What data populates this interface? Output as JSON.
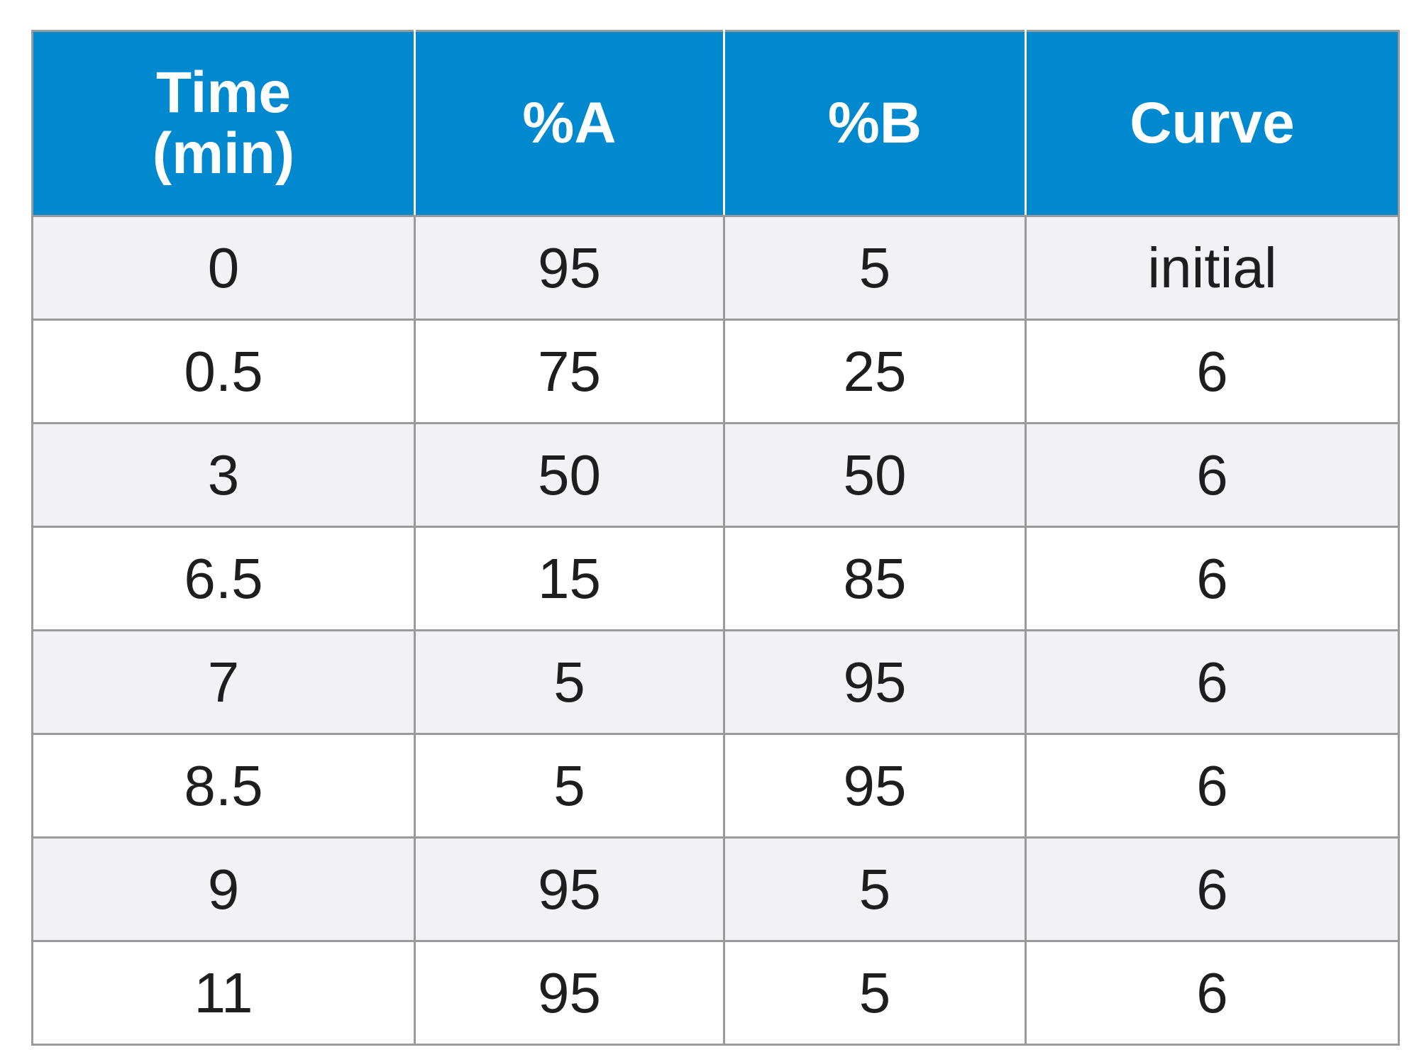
{
  "table": {
    "headers": {
      "time_line1": "Time",
      "time_line2": "(min)",
      "percent_a": "%A",
      "percent_b": "%B",
      "curve": "Curve"
    },
    "rows": [
      {
        "time": "0",
        "a": "95",
        "b": "5",
        "curve": "initial"
      },
      {
        "time": "0.5",
        "a": "75",
        "b": "25",
        "curve": "6"
      },
      {
        "time": "3",
        "a": "50",
        "b": "50",
        "curve": "6"
      },
      {
        "time": "6.5",
        "a": "15",
        "b": "85",
        "curve": "6"
      },
      {
        "time": "7",
        "a": "5",
        "b": "95",
        "curve": "6"
      },
      {
        "time": "8.5",
        "a": "5",
        "b": "95",
        "curve": "6"
      },
      {
        "time": "9",
        "a": "95",
        "b": "5",
        "curve": "6"
      },
      {
        "time": "11",
        "a": "95",
        "b": "5",
        "curve": "6"
      }
    ]
  },
  "colors": {
    "header_bg": "#0089cf",
    "header_text": "#ffffff",
    "row_alt_bg": "#f2f2f4",
    "border": "#9a9a9a"
  }
}
